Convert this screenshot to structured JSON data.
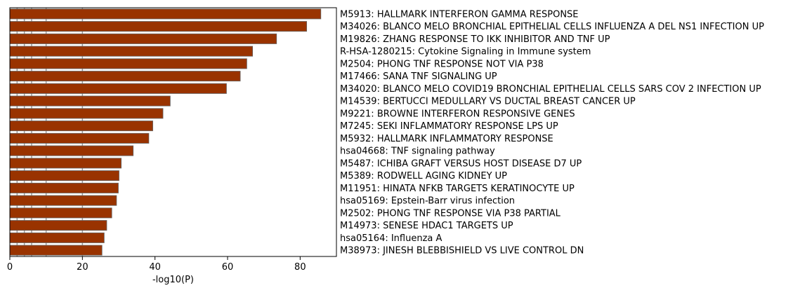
{
  "chart_data": {
    "type": "bar",
    "orientation": "horizontal",
    "xlabel": "-log10(P)",
    "ylabel": "",
    "xlim": [
      0,
      90
    ],
    "xticks": [
      0,
      20,
      40,
      60,
      80
    ],
    "reference_lines": [
      2,
      4,
      6,
      10,
      20
    ],
    "bar_color": "#993300",
    "bar_edge_color": "#666666",
    "reference_line_color": "#999999",
    "categories": [
      "M5913: HALLMARK INTERFERON GAMMA RESPONSE",
      "M34026: BLANCO MELO BRONCHIAL EPITHELIAL CELLS INFLUENZA A DEL NS1 INFECTION UP",
      "M19826: ZHANG RESPONSE TO IKK INHIBITOR AND TNF UP",
      "R-HSA-1280215: Cytokine Signaling in Immune system",
      "M2504: PHONG TNF RESPONSE NOT VIA P38",
      "M17466: SANA TNF SIGNALING UP",
      "M34020: BLANCO MELO COVID19 BRONCHIAL EPITHELIAL CELLS SARS COV 2 INFECTION UP",
      "M14539: BERTUCCI MEDULLARY VS DUCTAL BREAST CANCER UP",
      "M9221: BROWNE INTERFERON RESPONSIVE GENES",
      "M7245: SEKI INFLAMMATORY RESPONSE LPS UP",
      "M5932: HALLMARK INFLAMMATORY RESPONSE",
      "hsa04668: TNF signaling pathway",
      "M5487: ICHIBA GRAFT VERSUS HOST DISEASE D7 UP",
      "M5389: RODWELL AGING KIDNEY UP",
      "M11951: HINATA NFKB TARGETS KERATINOCYTE UP",
      "hsa05169: Epstein-Barr virus infection",
      "M2502: PHONG TNF RESPONSE VIA P38 PARTIAL",
      "M14973: SENESE HDAC1 TARGETS UP",
      "hsa05164: Influenza A",
      "M38973: JINESH BLEBBISHIELD VS LIVE CONTROL DN"
    ],
    "values": [
      85.7,
      81.8,
      73.5,
      66.9,
      65.3,
      63.5,
      59.7,
      44.2,
      42.2,
      39.4,
      38.3,
      34.0,
      30.7,
      30.1,
      29.9,
      29.4,
      28.1,
      26.7,
      26.0,
      25.4
    ]
  }
}
